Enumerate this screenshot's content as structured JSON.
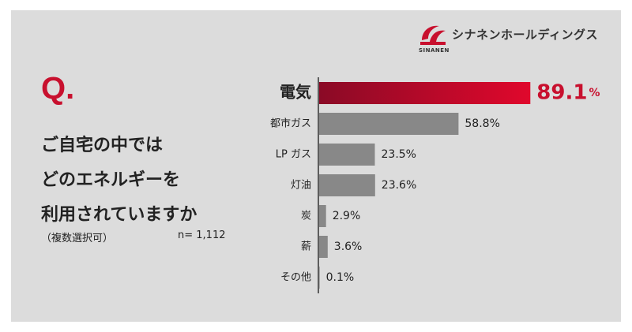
{
  "brand": {
    "name_jp": "シナネンホールディングス",
    "name_en": "SINANEN",
    "accent_color": "#c8102e"
  },
  "question": {
    "marker": "Q.",
    "lines": [
      "ご自宅の中では",
      "どのエネルギーを",
      "利用されていますか"
    ],
    "note": "（複数選択可）",
    "n_label": "n= 1,112"
  },
  "chart_data": {
    "type": "bar",
    "orientation": "horizontal",
    "title": "ご自宅の中ではどのエネルギーを利用されていますか",
    "categories": [
      "電気",
      "都市ガス",
      "LP ガス",
      "灯油",
      "炭",
      "薪",
      "その他"
    ],
    "values": [
      89.1,
      58.8,
      23.5,
      23.6,
      2.9,
      3.6,
      0.1
    ],
    "value_labels": [
      "89.1",
      "58.8%",
      "23.5%",
      "23.6%",
      "2.9%",
      "3.6%",
      "0.1%"
    ],
    "highlight_unit": "%",
    "highlight_index": 0,
    "unit": "%",
    "xlim": [
      0,
      100
    ],
    "colors": {
      "highlight_start": "#8a0a26",
      "highlight_end": "#e0082c",
      "bar": "#888888",
      "highlight_text": "#c8102e"
    }
  }
}
